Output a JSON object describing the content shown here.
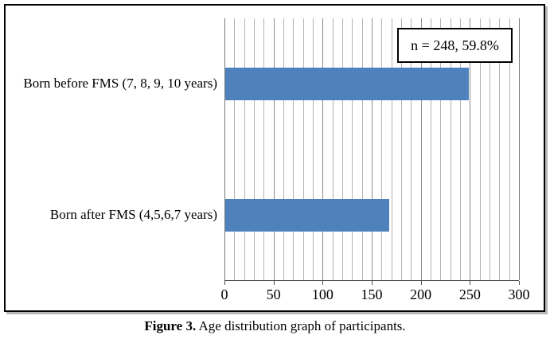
{
  "figure": {
    "caption_prefix": "Figure 3.",
    "caption_text": " Age distribution graph of participants."
  },
  "chart_data": {
    "type": "bar",
    "orientation": "horizontal",
    "categories": [
      "Born before FMS (7, 8, 9, 10 years)",
      "Born after FMS (4,5,6,7 years)"
    ],
    "values": [
      248,
      167
    ],
    "title": "",
    "xlabel": "",
    "ylabel": "",
    "xlim": [
      0,
      300
    ],
    "x_major_ticks": [
      0,
      50,
      100,
      150,
      200,
      250,
      300
    ],
    "x_minor_step": 10,
    "annotation": "n = 248, 59.8%",
    "legend": "none",
    "grid": "vertical-major-and-minor",
    "bar_color": "#4f81bd",
    "grid_minor_color": "#b3b3b3",
    "grid_major_color": "#8c8c8c",
    "axis_color": "#4d4d4d",
    "border_color": "#000000"
  }
}
